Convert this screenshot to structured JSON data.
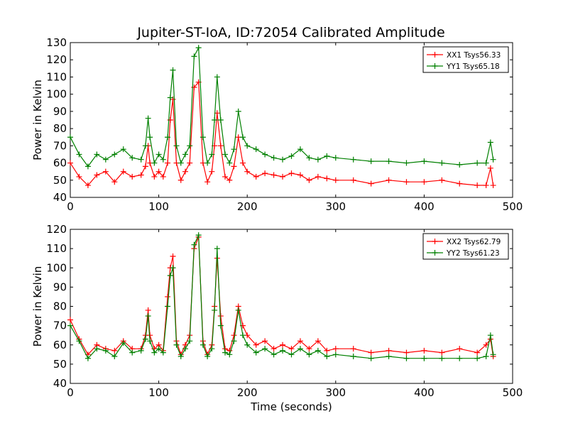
{
  "figure_title": "Jupiter-ST-IoA, ID:72054 Calibrated Amplitude",
  "colors": {
    "red": "#ff0000",
    "green": "#008000"
  },
  "chart_data": [
    {
      "type": "line",
      "title": "Jupiter-ST-IoA, ID:72054 Calibrated Amplitude",
      "xlabel": "",
      "ylabel": "Power in Kelvin",
      "xlim": [
        0,
        500
      ],
      "ylim": [
        40,
        130
      ],
      "xticks": [
        "0",
        "100",
        "200",
        "300",
        "400",
        "500"
      ],
      "yticks": [
        "40",
        "50",
        "60",
        "70",
        "80",
        "90",
        "100",
        "110",
        "120",
        "130"
      ],
      "legend_position": "top-right",
      "grid": false,
      "x": [
        0,
        10,
        20,
        30,
        40,
        50,
        60,
        70,
        80,
        85,
        88,
        90,
        95,
        100,
        105,
        110,
        113,
        116,
        120,
        125,
        130,
        135,
        140,
        145,
        150,
        155,
        160,
        163,
        166,
        170,
        175,
        180,
        185,
        190,
        195,
        200,
        210,
        220,
        230,
        240,
        250,
        260,
        270,
        280,
        290,
        300,
        320,
        340,
        360,
        380,
        400,
        420,
        440,
        460,
        470,
        475,
        478
      ],
      "series": [
        {
          "name": "XX1 Tsys56.33",
          "color": "#ff0000",
          "values": [
            60,
            52,
            47,
            53,
            55,
            49,
            55,
            52,
            53,
            58,
            70,
            60,
            52,
            55,
            52,
            60,
            85,
            97,
            60,
            50,
            55,
            60,
            104,
            107,
            60,
            49,
            55,
            70,
            89,
            70,
            52,
            50,
            58,
            75,
            60,
            55,
            52,
            54,
            53,
            52,
            54,
            53,
            50,
            52,
            51,
            50,
            50,
            48,
            50,
            49,
            49,
            50,
            48,
            47,
            47,
            57,
            47
          ]
        },
        {
          "name": "YY1 Tsys65.18",
          "color": "#008000",
          "values": [
            75,
            65,
            58,
            65,
            62,
            65,
            68,
            63,
            62,
            70,
            86,
            75,
            60,
            65,
            62,
            75,
            98,
            114,
            70,
            60,
            65,
            70,
            122,
            127,
            75,
            60,
            65,
            85,
            110,
            85,
            65,
            60,
            68,
            90,
            75,
            70,
            68,
            65,
            63,
            62,
            64,
            68,
            63,
            62,
            64,
            63,
            62,
            61,
            61,
            60,
            61,
            60,
            59,
            60,
            60,
            72,
            62
          ]
        }
      ]
    },
    {
      "type": "line",
      "title": "",
      "xlabel": "Time (seconds)",
      "ylabel": "Power in Kelvin",
      "xlim": [
        0,
        500
      ],
      "ylim": [
        40,
        120
      ],
      "xticks": [
        "0",
        "100",
        "200",
        "300",
        "400",
        "500"
      ],
      "yticks": [
        "40",
        "50",
        "60",
        "70",
        "80",
        "90",
        "100",
        "110",
        "120"
      ],
      "legend_position": "top-right",
      "grid": false,
      "x": [
        0,
        10,
        20,
        30,
        40,
        50,
        60,
        70,
        80,
        85,
        88,
        90,
        95,
        100,
        105,
        110,
        113,
        116,
        120,
        125,
        130,
        135,
        140,
        145,
        150,
        155,
        160,
        163,
        166,
        170,
        175,
        180,
        185,
        190,
        195,
        200,
        210,
        220,
        230,
        240,
        250,
        260,
        270,
        280,
        290,
        300,
        320,
        340,
        360,
        380,
        400,
        420,
        440,
        460,
        470,
        475,
        478
      ],
      "series": [
        {
          "name": "XX2 Tsys62.79",
          "color": "#ff0000",
          "values": [
            73,
            63,
            55,
            60,
            58,
            57,
            62,
            58,
            58,
            65,
            78,
            65,
            58,
            60,
            57,
            85,
            100,
            106,
            62,
            55,
            60,
            65,
            110,
            116,
            62,
            55,
            60,
            80,
            105,
            75,
            58,
            57,
            65,
            80,
            70,
            65,
            60,
            62,
            58,
            60,
            58,
            62,
            58,
            62,
            57,
            58,
            58,
            56,
            57,
            56,
            57,
            56,
            58,
            56,
            60,
            63,
            54
          ]
        },
        {
          "name": "YY2 Tsys61.23",
          "color": "#008000",
          "values": [
            70,
            62,
            53,
            58,
            57,
            54,
            61,
            56,
            57,
            63,
            75,
            62,
            56,
            58,
            56,
            80,
            96,
            100,
            60,
            54,
            58,
            62,
            112,
            117,
            60,
            54,
            58,
            78,
            110,
            70,
            56,
            55,
            62,
            78,
            65,
            60,
            56,
            58,
            55,
            57,
            55,
            58,
            55,
            57,
            54,
            55,
            54,
            53,
            54,
            53,
            53,
            53,
            53,
            53,
            54,
            65,
            55
          ]
        }
      ]
    }
  ]
}
